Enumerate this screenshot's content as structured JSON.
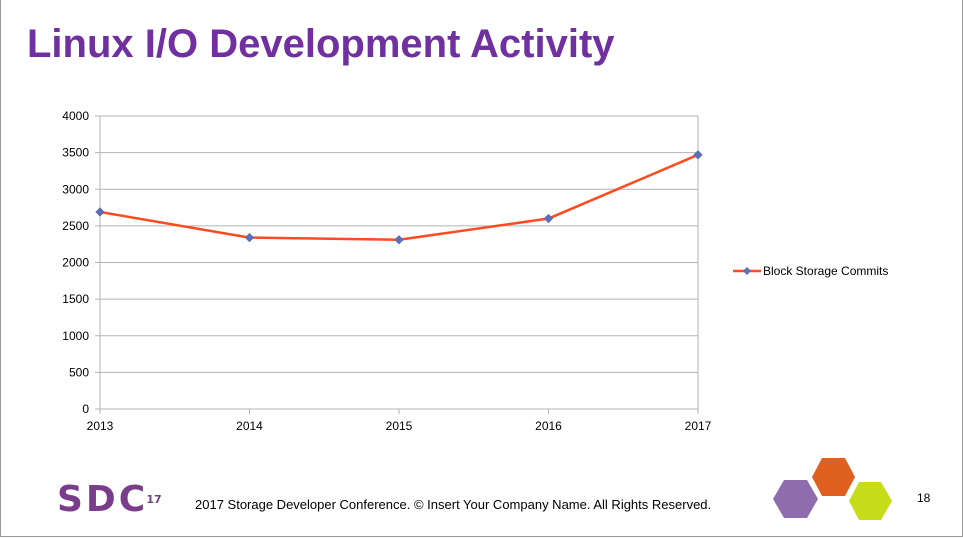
{
  "slide": {
    "title": "Linux I/O Development Activity",
    "footer": "2017 Storage  Developer Conference. © Insert Your Company Name.  All Rights Reserved.",
    "page_number": "18",
    "logo_text": "SDC",
    "logo_badge": "17"
  },
  "colors": {
    "title": "#7030a0",
    "series_line": "#ff4b1f",
    "series_marker": "#5b6fb5",
    "hex_purple": "#8e6cae",
    "hex_orange": "#e06020",
    "hex_green": "#c8dc1c"
  },
  "chart_data": {
    "type": "line",
    "x": [
      "2013",
      "2014",
      "2015",
      "2016",
      "2017"
    ],
    "series": [
      {
        "name": "Block Storage Commits",
        "values": [
          2690,
          2340,
          2310,
          2600,
          3470
        ]
      }
    ],
    "ylim": [
      0,
      4000
    ],
    "yticks": [
      "0",
      "500",
      "1000",
      "1500",
      "2000",
      "2500",
      "3000",
      "3500",
      "4000"
    ],
    "grid": true,
    "legend": "right"
  }
}
